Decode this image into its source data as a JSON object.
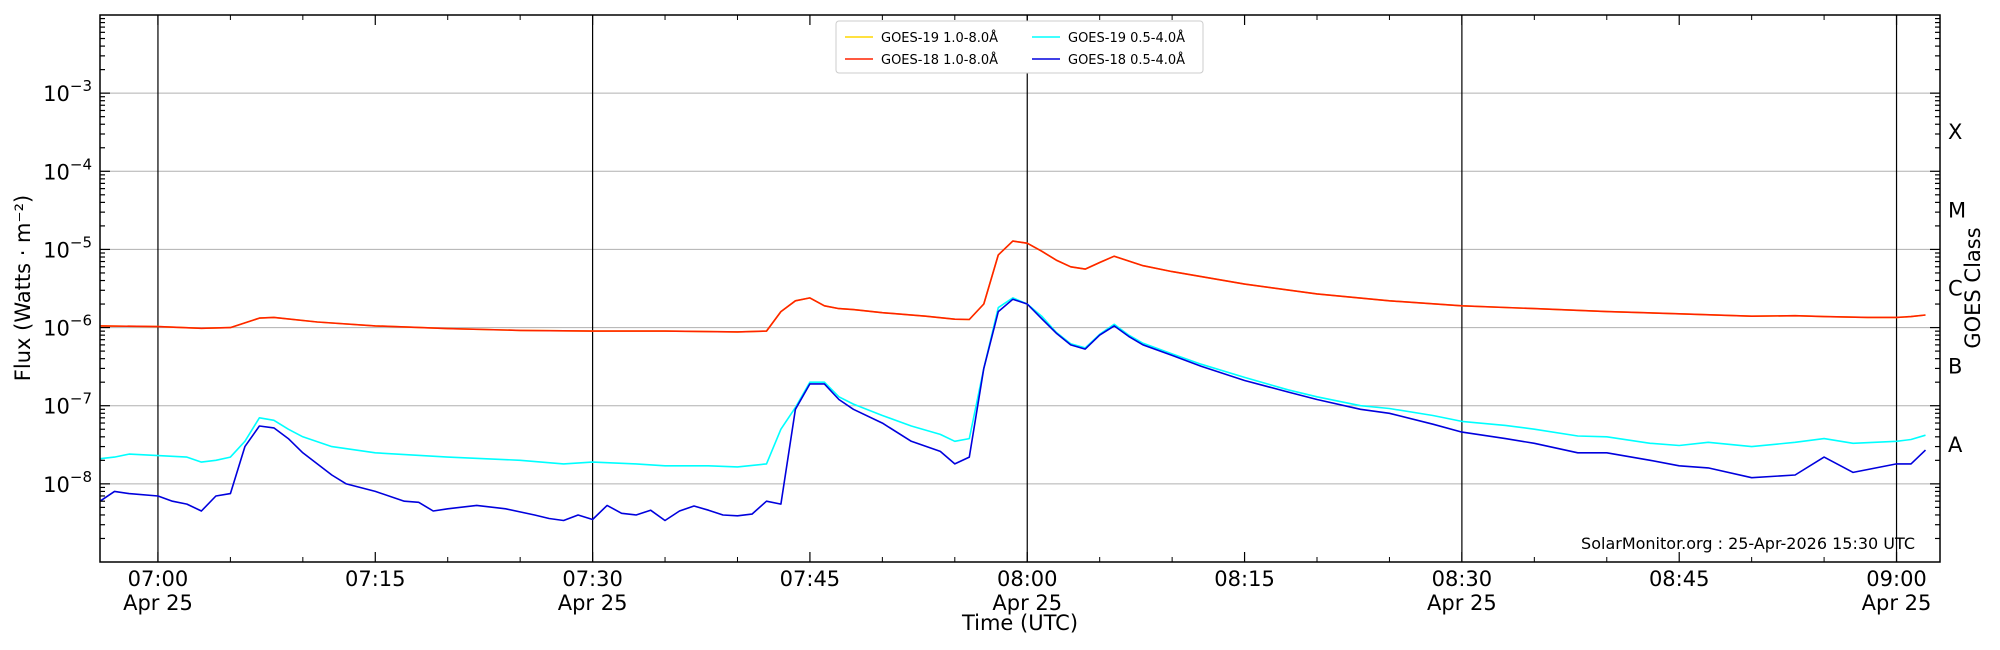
{
  "chart_data": {
    "type": "line",
    "title": "",
    "xlabel": "Time (UTC)",
    "ylabel": "Flux (Watts · m⁻²)",
    "y2label": "GOES Class",
    "yscale": "log",
    "xlim": [
      "06:56",
      "09:03"
    ],
    "ylim": [
      1e-09,
      0.01
    ],
    "grid": "horizontal",
    "legend_position": "top-center",
    "credit": "SolarMonitor.org : 25-Apr-2026 15:30 UTC",
    "x_ticks": [
      {
        "time": "07:00",
        "line1": "07:00",
        "line2": "Apr 25",
        "vline": true
      },
      {
        "time": "07:15",
        "line1": "07:15",
        "line2": "",
        "vline": false
      },
      {
        "time": "07:30",
        "line1": "07:30",
        "line2": "Apr 25",
        "vline": true
      },
      {
        "time": "07:45",
        "line1": "07:45",
        "line2": "",
        "vline": false
      },
      {
        "time": "08:00",
        "line1": "08:00",
        "line2": "Apr 25",
        "vline": true
      },
      {
        "time": "08:15",
        "line1": "08:15",
        "line2": "",
        "vline": false
      },
      {
        "time": "08:30",
        "line1": "08:30",
        "line2": "Apr 25",
        "vline": true
      },
      {
        "time": "08:45",
        "line1": "08:45",
        "line2": "",
        "vline": false
      },
      {
        "time": "09:00",
        "line1": "09:00",
        "line2": "Apr 25",
        "vline": true
      }
    ],
    "y_ticks": [
      {
        "exp": -8,
        "label": "10",
        "sup": "−8"
      },
      {
        "exp": -7,
        "label": "10",
        "sup": "−7"
      },
      {
        "exp": -6,
        "label": "10",
        "sup": "−6"
      },
      {
        "exp": -5,
        "label": "10",
        "sup": "−5"
      },
      {
        "exp": -4,
        "label": "10",
        "sup": "−4"
      },
      {
        "exp": -3,
        "label": "10",
        "sup": "−3"
      }
    ],
    "goes_classes": [
      {
        "label": "A",
        "exp": -8
      },
      {
        "label": "B",
        "exp": -7
      },
      {
        "label": "C",
        "exp": -6
      },
      {
        "label": "M",
        "exp": -5
      },
      {
        "label": "X",
        "exp": -4
      }
    ],
    "series": [
      {
        "name": "GOES-19 1.0-8.0Å",
        "color": "#FFD700",
        "times": [
          "06:56",
          "07:00",
          "07:03",
          "07:05",
          "07:07",
          "07:08",
          "07:11",
          "07:15",
          "07:20",
          "07:25",
          "07:30",
          "07:35",
          "07:40",
          "07:42",
          "07:43",
          "07:44",
          "07:45",
          "07:46",
          "07:47",
          "07:48",
          "07:50",
          "07:53",
          "07:55",
          "07:56",
          "07:57",
          "07:58",
          "07:59",
          "08:00",
          "08:01",
          "08:02",
          "08:03",
          "08:04",
          "08:05",
          "08:06",
          "08:08",
          "08:10",
          "08:15",
          "08:20",
          "08:25",
          "08:30",
          "08:35",
          "08:40",
          "08:45",
          "08:50",
          "08:53",
          "08:55",
          "08:58",
          "09:00",
          "09:01",
          "09:02"
        ],
        "values": [
          1.05e-06,
          1.03e-06,
          9.8e-07,
          1e-06,
          1.32e-06,
          1.35e-06,
          1.18e-06,
          1.05e-06,
          9.7e-07,
          9.2e-07,
          9e-07,
          9e-07,
          8.8e-07,
          9e-07,
          1.6e-06,
          2.2e-06,
          2.4e-06,
          1.9e-06,
          1.75e-06,
          1.7e-06,
          1.55e-06,
          1.4e-06,
          1.28e-06,
          1.27e-06,
          2e-06,
          8.5e-06,
          1.28e-05,
          1.2e-05,
          9.5e-06,
          7.3e-06,
          6e-06,
          5.6e-06,
          6.8e-06,
          8.2e-06,
          6.2e-06,
          5.2e-06,
          3.6e-06,
          2.7e-06,
          2.2e-06,
          1.9e-06,
          1.75e-06,
          1.6e-06,
          1.5e-06,
          1.4e-06,
          1.42e-06,
          1.38e-06,
          1.35e-06,
          1.35e-06,
          1.38e-06,
          1.45e-06
        ]
      },
      {
        "name": "GOES-18 1.0-8.0Å",
        "color": "#FF2200",
        "times": [
          "06:56",
          "07:00",
          "07:03",
          "07:05",
          "07:07",
          "07:08",
          "07:11",
          "07:15",
          "07:20",
          "07:25",
          "07:30",
          "07:35",
          "07:40",
          "07:42",
          "07:43",
          "07:44",
          "07:45",
          "07:46",
          "07:47",
          "07:48",
          "07:50",
          "07:53",
          "07:55",
          "07:56",
          "07:57",
          "07:58",
          "07:59",
          "08:00",
          "08:01",
          "08:02",
          "08:03",
          "08:04",
          "08:05",
          "08:06",
          "08:08",
          "08:10",
          "08:15",
          "08:20",
          "08:25",
          "08:30",
          "08:35",
          "08:40",
          "08:45",
          "08:50",
          "08:53",
          "08:55",
          "08:58",
          "09:00",
          "09:01",
          "09:02"
        ],
        "values": [
          1.05e-06,
          1.03e-06,
          9.8e-07,
          1e-06,
          1.32e-06,
          1.35e-06,
          1.18e-06,
          1.05e-06,
          9.7e-07,
          9.2e-07,
          9e-07,
          9e-07,
          8.8e-07,
          9e-07,
          1.6e-06,
          2.2e-06,
          2.4e-06,
          1.9e-06,
          1.75e-06,
          1.7e-06,
          1.55e-06,
          1.4e-06,
          1.28e-06,
          1.27e-06,
          2e-06,
          8.5e-06,
          1.28e-05,
          1.2e-05,
          9.5e-06,
          7.3e-06,
          6e-06,
          5.6e-06,
          6.8e-06,
          8.2e-06,
          6.2e-06,
          5.2e-06,
          3.6e-06,
          2.7e-06,
          2.2e-06,
          1.9e-06,
          1.75e-06,
          1.6e-06,
          1.5e-06,
          1.4e-06,
          1.42e-06,
          1.38e-06,
          1.35e-06,
          1.35e-06,
          1.38e-06,
          1.45e-06
        ]
      },
      {
        "name": "GOES-19 0.5-4.0Å",
        "color": "#00FFFF",
        "times": [
          "06:56",
          "06:57",
          "06:58",
          "07:00",
          "07:02",
          "07:03",
          "07:04",
          "07:05",
          "07:06",
          "07:07",
          "07:08",
          "07:09",
          "07:10",
          "07:12",
          "07:15",
          "07:20",
          "07:25",
          "07:28",
          "07:30",
          "07:33",
          "07:35",
          "07:38",
          "07:40",
          "07:42",
          "07:43",
          "07:44",
          "07:45",
          "07:46",
          "07:47",
          "07:48",
          "07:50",
          "07:52",
          "07:54",
          "07:55",
          "07:56",
          "07:57",
          "07:58",
          "07:59",
          "08:00",
          "08:01",
          "08:02",
          "08:03",
          "08:04",
          "08:05",
          "08:06",
          "08:07",
          "08:08",
          "08:10",
          "08:12",
          "08:15",
          "08:18",
          "08:20",
          "08:23",
          "08:25",
          "08:28",
          "08:30",
          "08:33",
          "08:35",
          "08:38",
          "08:40",
          "08:43",
          "08:45",
          "08:47",
          "08:50",
          "08:53",
          "08:55",
          "08:57",
          "09:00",
          "09:01",
          "09:02"
        ],
        "values": [
          2.1e-08,
          2.2e-08,
          2.4e-08,
          2.3e-08,
          2.2e-08,
          1.9e-08,
          2e-08,
          2.2e-08,
          3.5e-08,
          7e-08,
          6.5e-08,
          5e-08,
          4e-08,
          3e-08,
          2.5e-08,
          2.2e-08,
          2e-08,
          1.8e-08,
          1.9e-08,
          1.8e-08,
          1.7e-08,
          1.7e-08,
          1.65e-08,
          1.8e-08,
          5e-08,
          9.5e-08,
          2e-07,
          2e-07,
          1.3e-07,
          1.05e-07,
          7.5e-08,
          5.5e-08,
          4.3e-08,
          3.5e-08,
          3.8e-08,
          3e-07,
          1.8e-06,
          2.4e-06,
          2e-06,
          1.4e-06,
          8.7e-07,
          6.2e-07,
          5.5e-07,
          8.2e-07,
          1.1e-06,
          8e-07,
          6.3e-07,
          4.6e-07,
          3.4e-07,
          2.3e-07,
          1.6e-07,
          1.3e-07,
          1e-07,
          9.2e-08,
          7.5e-08,
          6.3e-08,
          5.6e-08,
          5e-08,
          4.1e-08,
          4e-08,
          3.3e-08,
          3.1e-08,
          3.4e-08,
          3e-08,
          3.4e-08,
          3.8e-08,
          3.3e-08,
          3.5e-08,
          3.7e-08,
          4.2e-08
        ]
      },
      {
        "name": "GOES-18 0.5-4.0Å",
        "color": "#0000DD",
        "times": [
          "06:56",
          "06:57",
          "06:58",
          "07:00",
          "07:01",
          "07:02",
          "07:03",
          "07:04",
          "07:05",
          "07:06",
          "07:07",
          "07:08",
          "07:09",
          "07:10",
          "07:12",
          "07:13",
          "07:15",
          "07:17",
          "07:18",
          "07:19",
          "07:20",
          "07:22",
          "07:24",
          "07:26",
          "07:27",
          "07:28",
          "07:29",
          "07:30",
          "07:31",
          "07:32",
          "07:33",
          "07:34",
          "07:35",
          "07:36",
          "07:37",
          "07:38",
          "07:39",
          "07:40",
          "07:41",
          "07:42",
          "07:43",
          "07:44",
          "07:45",
          "07:46",
          "07:47",
          "07:48",
          "07:50",
          "07:52",
          "07:54",
          "07:55",
          "07:56",
          "07:57",
          "07:58",
          "07:59",
          "08:00",
          "08:01",
          "08:02",
          "08:03",
          "08:04",
          "08:05",
          "08:06",
          "08:07",
          "08:08",
          "08:10",
          "08:12",
          "08:15",
          "08:18",
          "08:20",
          "08:23",
          "08:25",
          "08:28",
          "08:30",
          "08:33",
          "08:35",
          "08:38",
          "08:40",
          "08:43",
          "08:45",
          "08:47",
          "08:50",
          "08:53",
          "08:55",
          "08:57",
          "09:00",
          "09:01",
          "09:02"
        ],
        "values": [
          6e-09,
          8e-09,
          7.5e-09,
          7e-09,
          6e-09,
          5.5e-09,
          4.5e-09,
          7e-09,
          7.5e-09,
          3e-08,
          5.5e-08,
          5.2e-08,
          3.8e-08,
          2.5e-08,
          1.3e-08,
          1e-08,
          8e-09,
          6e-09,
          5.8e-09,
          4.5e-09,
          4.8e-09,
          5.3e-09,
          4.8e-09,
          4e-09,
          3.6e-09,
          3.4e-09,
          4e-09,
          3.5e-09,
          5.3e-09,
          4.2e-09,
          4e-09,
          4.6e-09,
          3.4e-09,
          4.5e-09,
          5.2e-09,
          4.6e-09,
          4e-09,
          3.9e-09,
          4.1e-09,
          6e-09,
          5.5e-09,
          9e-08,
          1.9e-07,
          1.9e-07,
          1.2e-07,
          9e-08,
          6e-08,
          3.5e-08,
          2.6e-08,
          1.8e-08,
          2.2e-08,
          3e-07,
          1.6e-06,
          2.3e-06,
          2e-06,
          1.3e-06,
          8.5e-07,
          6e-07,
          5.3e-07,
          8e-07,
          1.05e-06,
          7.7e-07,
          6e-07,
          4.4e-07,
          3.2e-07,
          2.1e-07,
          1.5e-07,
          1.2e-07,
          9e-08,
          8e-08,
          5.8e-08,
          4.6e-08,
          3.8e-08,
          3.3e-08,
          2.5e-08,
          2.5e-08,
          2e-08,
          1.7e-08,
          1.6e-08,
          1.2e-08,
          1.3e-08,
          2.2e-08,
          1.4e-08,
          1.8e-08,
          1.8e-08,
          2.7e-08
        ]
      }
    ]
  }
}
